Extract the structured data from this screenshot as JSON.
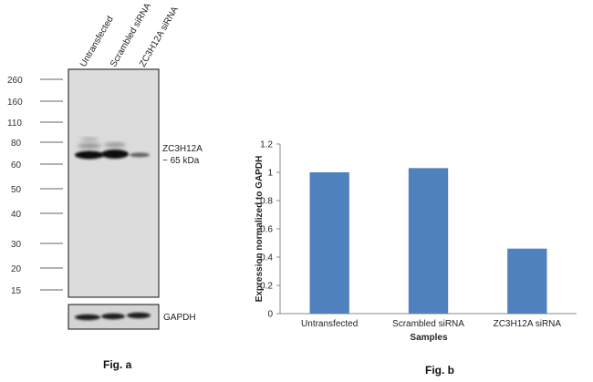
{
  "figure_a": {
    "label": "Fig. a",
    "lanes": [
      "Untransfected",
      "Scrambled siRNA",
      "ZC3H12A siRNA"
    ],
    "mw_markers": [
      "260",
      "160",
      "110",
      "80",
      "60",
      "50",
      "40",
      "30",
      "20",
      "15"
    ],
    "band_label_line1": "ZC3H12A",
    "band_label_line2": "~ 65 kDa",
    "loading_control": "GAPDH"
  },
  "figure_b": {
    "label": "Fig. b"
  },
  "chart_data": {
    "type": "bar",
    "categories": [
      "Untransfected",
      "Scrambled siRNA",
      "ZC3H12A siRNA"
    ],
    "values": [
      1.0,
      1.03,
      0.46
    ],
    "xlabel": "Samples",
    "ylabel": "Expression normalized to GAPDH",
    "ylim": [
      0,
      1.2
    ],
    "yticks": [
      "0",
      "0.2",
      "0.4",
      "0.6",
      "0.8",
      "1",
      "1.2"
    ],
    "bar_color": "#4f81bd",
    "grid": false,
    "legend": "none"
  }
}
